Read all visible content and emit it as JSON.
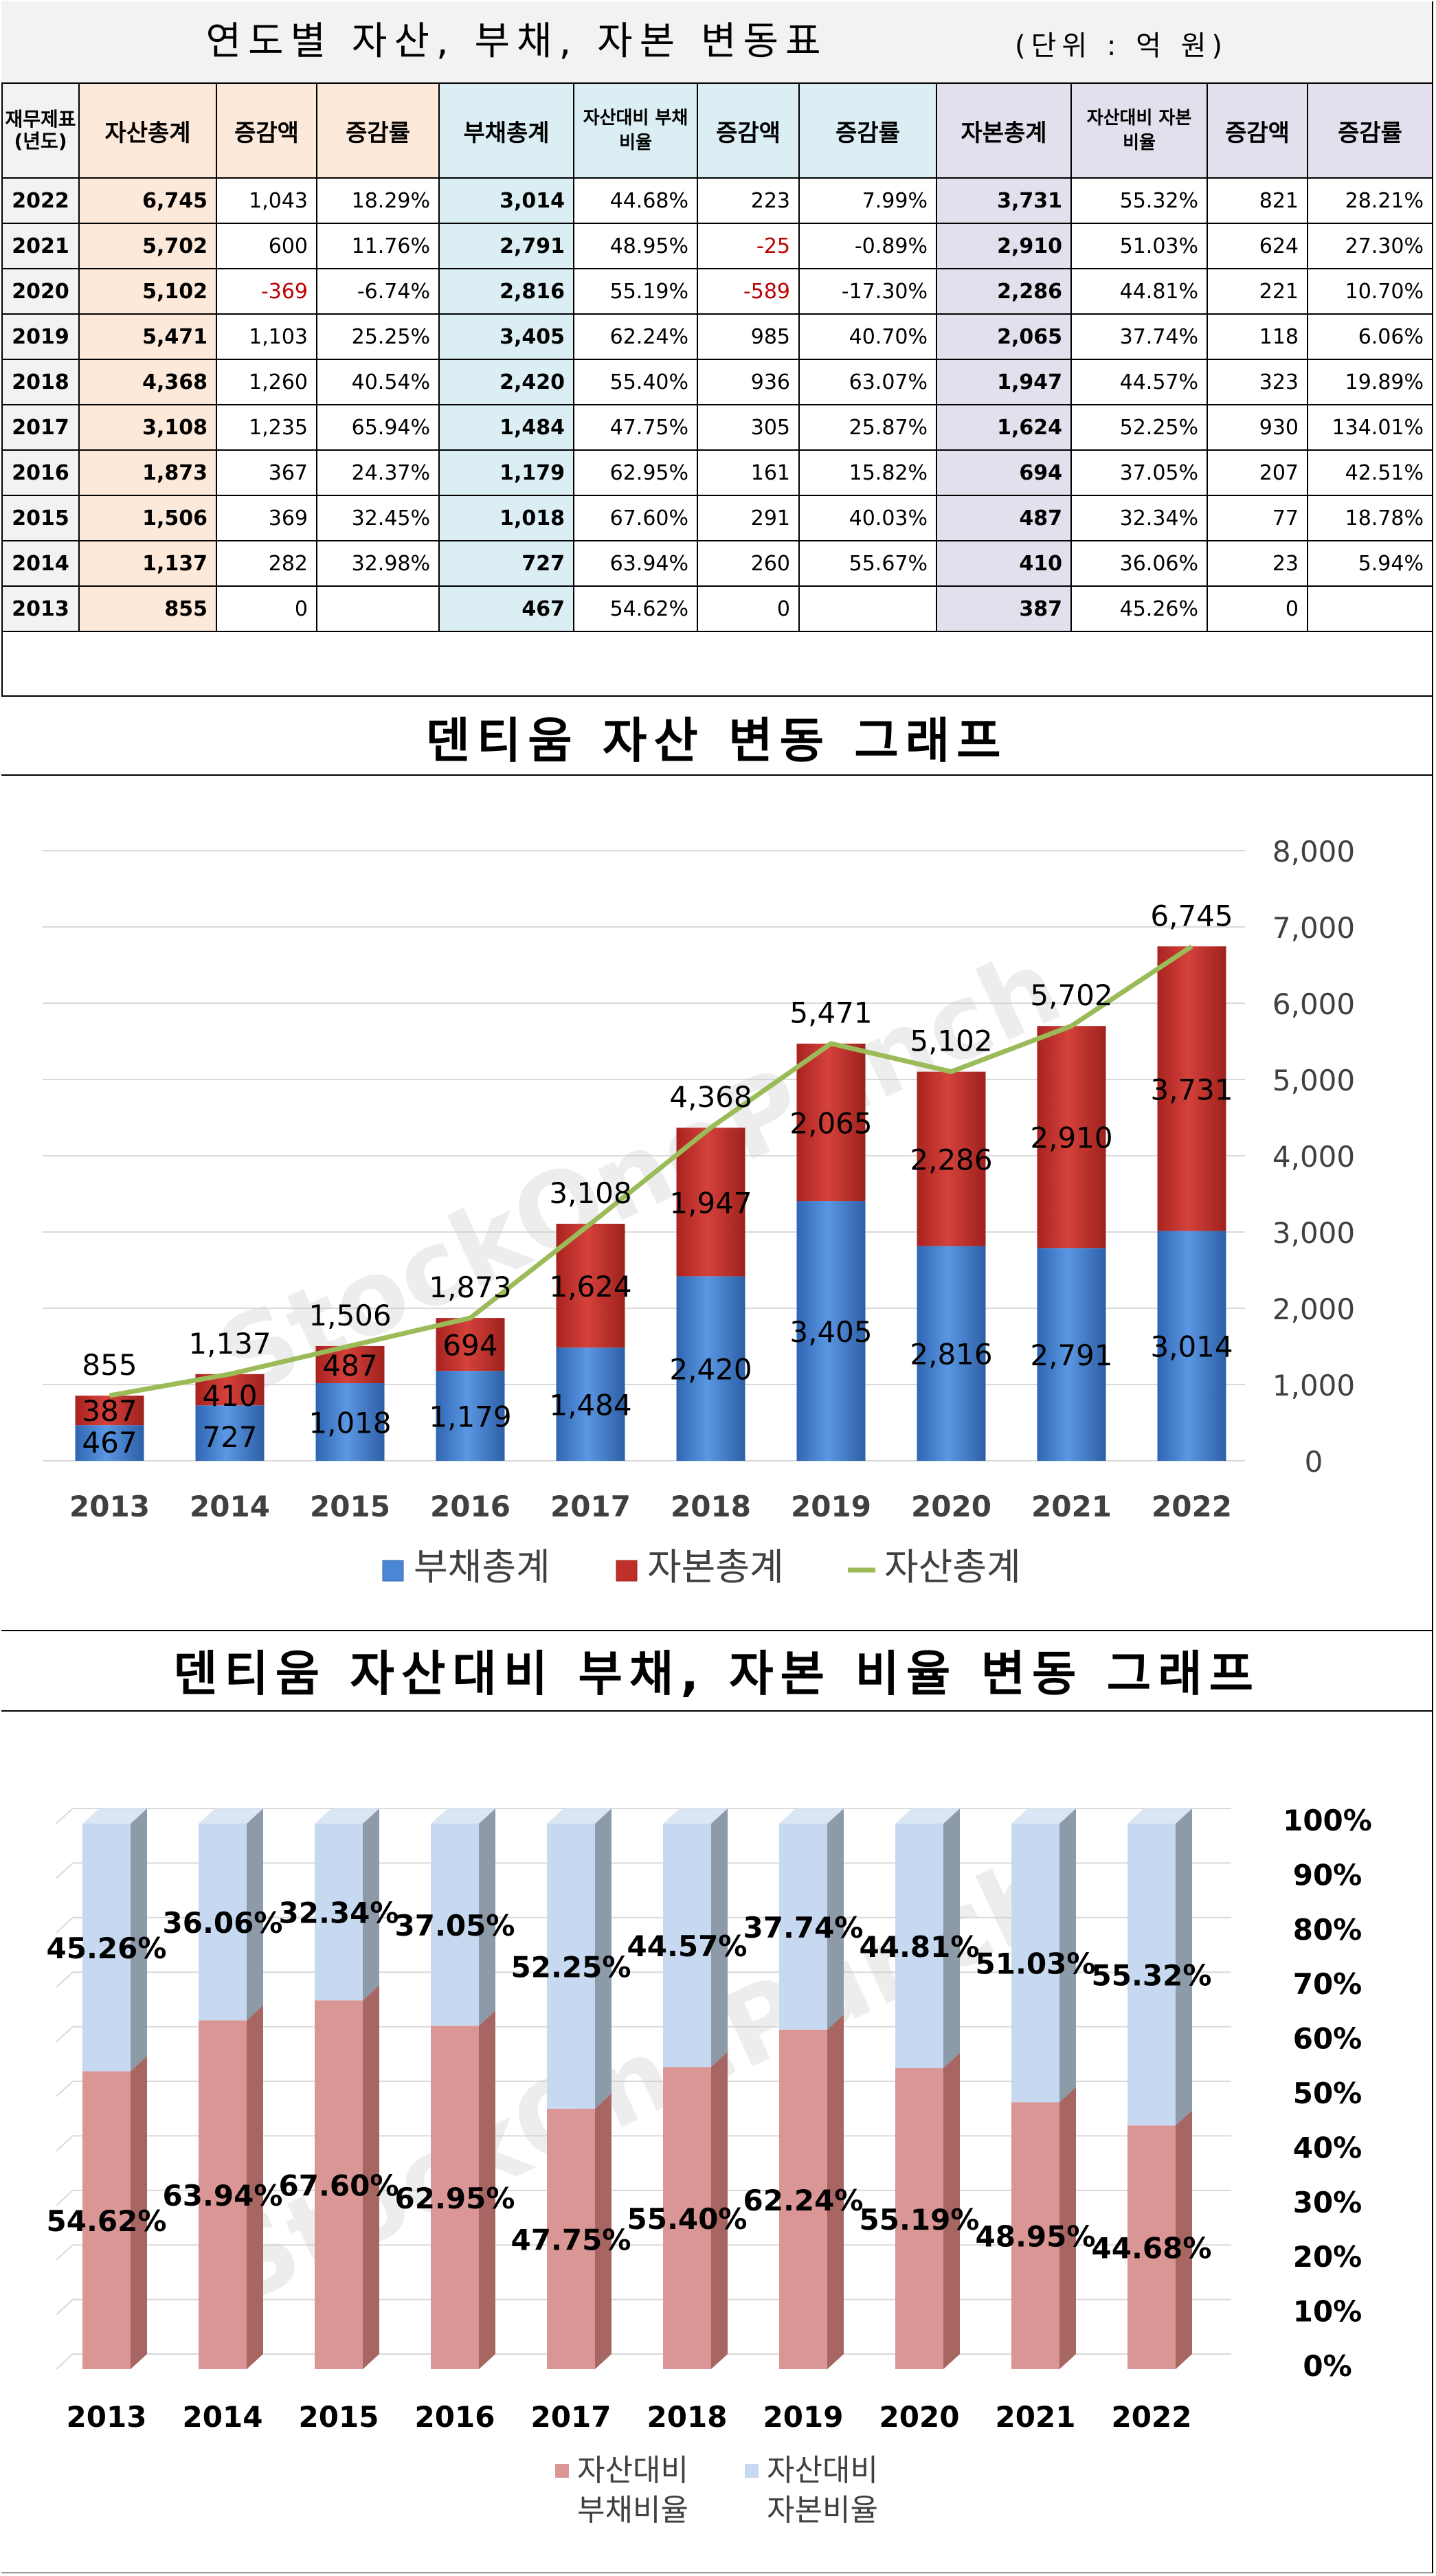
{
  "table": {
    "title": "연도별 자산, 부채, 자본 변동표",
    "unit": "(단위 : 억 원)",
    "headers": {
      "year": "재무제표(년도)",
      "asset_total": "자산총계",
      "asset_change": "증감액",
      "asset_rate": "증감률",
      "liab_total": "부채총계",
      "liab_ratio": "자산대비 부채비율",
      "liab_change": "증감액",
      "liab_rate": "증감률",
      "cap_total": "자본총계",
      "cap_ratio": "자산대비 자본비율",
      "cap_change": "증감액",
      "cap_rate": "증감률"
    },
    "rows": [
      {
        "year": "2022",
        "asset": "6,745",
        "asset_chg": "1,043",
        "asset_rate": "18.29%",
        "liab": "3,014",
        "liab_ratio": "44.68%",
        "liab_chg": "223",
        "liab_rate": "7.99%",
        "cap": "3,731",
        "cap_ratio": "55.32%",
        "cap_chg": "821",
        "cap_rate": "28.21%"
      },
      {
        "year": "2021",
        "asset": "5,702",
        "asset_chg": "600",
        "asset_rate": "11.76%",
        "liab": "2,791",
        "liab_ratio": "48.95%",
        "liab_chg": "-25",
        "liab_rate": "-0.89%",
        "cap": "2,910",
        "cap_ratio": "51.03%",
        "cap_chg": "624",
        "cap_rate": "27.30%"
      },
      {
        "year": "2020",
        "asset": "5,102",
        "asset_chg": "-369",
        "asset_rate": "-6.74%",
        "liab": "2,816",
        "liab_ratio": "55.19%",
        "liab_chg": "-589",
        "liab_rate": "-17.30%",
        "cap": "2,286",
        "cap_ratio": "44.81%",
        "cap_chg": "221",
        "cap_rate": "10.70%"
      },
      {
        "year": "2019",
        "asset": "5,471",
        "asset_chg": "1,103",
        "asset_rate": "25.25%",
        "liab": "3,405",
        "liab_ratio": "62.24%",
        "liab_chg": "985",
        "liab_rate": "40.70%",
        "cap": "2,065",
        "cap_ratio": "37.74%",
        "cap_chg": "118",
        "cap_rate": "6.06%"
      },
      {
        "year": "2018",
        "asset": "4,368",
        "asset_chg": "1,260",
        "asset_rate": "40.54%",
        "liab": "2,420",
        "liab_ratio": "55.40%",
        "liab_chg": "936",
        "liab_rate": "63.07%",
        "cap": "1,947",
        "cap_ratio": "44.57%",
        "cap_chg": "323",
        "cap_rate": "19.89%"
      },
      {
        "year": "2017",
        "asset": "3,108",
        "asset_chg": "1,235",
        "asset_rate": "65.94%",
        "liab": "1,484",
        "liab_ratio": "47.75%",
        "liab_chg": "305",
        "liab_rate": "25.87%",
        "cap": "1,624",
        "cap_ratio": "52.25%",
        "cap_chg": "930",
        "cap_rate": "134.01%"
      },
      {
        "year": "2016",
        "asset": "1,873",
        "asset_chg": "367",
        "asset_rate": "24.37%",
        "liab": "1,179",
        "liab_ratio": "62.95%",
        "liab_chg": "161",
        "liab_rate": "15.82%",
        "cap": "694",
        "cap_ratio": "37.05%",
        "cap_chg": "207",
        "cap_rate": "42.51%"
      },
      {
        "year": "2015",
        "asset": "1,506",
        "asset_chg": "369",
        "asset_rate": "32.45%",
        "liab": "1,018",
        "liab_ratio": "67.60%",
        "liab_chg": "291",
        "liab_rate": "40.03%",
        "cap": "487",
        "cap_ratio": "32.34%",
        "cap_chg": "77",
        "cap_rate": "18.78%"
      },
      {
        "year": "2014",
        "asset": "1,137",
        "asset_chg": "282",
        "asset_rate": "32.98%",
        "liab": "727",
        "liab_ratio": "63.94%",
        "liab_chg": "260",
        "liab_rate": "55.67%",
        "cap": "410",
        "cap_ratio": "36.06%",
        "cap_chg": "23",
        "cap_rate": "5.94%"
      },
      {
        "year": "2013",
        "asset": "855",
        "asset_chg": "0",
        "asset_rate": "",
        "liab": "467",
        "liab_ratio": "54.62%",
        "liab_chg": "0",
        "liab_rate": "",
        "cap": "387",
        "cap_ratio": "45.26%",
        "cap_chg": "0",
        "cap_rate": ""
      }
    ]
  },
  "watermark": "StockOnePunch",
  "colors": {
    "liab_bar": "#4a86d4",
    "cap_bar": "#c0302a",
    "asset_line": "#9bbb59",
    "ratio_liab": "#d99694",
    "ratio_cap": "#c6d9f1",
    "negative": "#c00000"
  },
  "chart_data": [
    {
      "type": "bar",
      "stacked": true,
      "title": "덴티움 자산 변동 그래프",
      "categories": [
        "2013",
        "2014",
        "2015",
        "2016",
        "2017",
        "2018",
        "2019",
        "2020",
        "2021",
        "2022"
      ],
      "series": [
        {
          "name": "부채총계",
          "kind": "bar",
          "values": [
            467,
            727,
            1018,
            1179,
            1484,
            2420,
            3405,
            2816,
            2791,
            3014
          ],
          "labels": [
            "467",
            "727",
            "1,018",
            "1,179",
            "1,484",
            "2,420",
            "3,405",
            "2,816",
            "2,791",
            "3,014"
          ]
        },
        {
          "name": "자본총계",
          "kind": "bar",
          "values": [
            387,
            410,
            487,
            694,
            1624,
            1947,
            2065,
            2286,
            2910,
            3731
          ],
          "labels": [
            "387",
            "410",
            "487",
            "694",
            "1,624",
            "1,947",
            "2,065",
            "2,286",
            "2,910",
            "3,731"
          ]
        },
        {
          "name": "자산총계",
          "kind": "line",
          "values": [
            855,
            1137,
            1506,
            1873,
            3108,
            4368,
            5471,
            5102,
            5702,
            6745
          ],
          "labels": [
            "855",
            "1,137",
            "1,506",
            "1,873",
            "3,108",
            "4,368",
            "5,471",
            "5,102",
            "5,702",
            "6,745"
          ]
        }
      ],
      "yaxis": {
        "min": 0,
        "max": 8000,
        "ticks": [
          "0",
          "1,000",
          "2,000",
          "3,000",
          "4,000",
          "5,000",
          "6,000",
          "7,000",
          "8,000"
        ],
        "position": "right"
      },
      "grid": true,
      "legend": "bottom"
    },
    {
      "type": "bar",
      "stacked": true,
      "percent": true,
      "title": "덴티움 자산대비 부채, 자본 비율 변동 그래프",
      "categories": [
        "2013",
        "2014",
        "2015",
        "2016",
        "2017",
        "2018",
        "2019",
        "2020",
        "2021",
        "2022"
      ],
      "series": [
        {
          "name": "자산대비 부채비율",
          "values": [
            54.62,
            63.94,
            67.6,
            62.95,
            47.75,
            55.4,
            62.24,
            55.19,
            48.95,
            44.68
          ],
          "labels": [
            "54.62%",
            "63.94%",
            "67.60%",
            "62.95%",
            "47.75%",
            "55.40%",
            "62.24%",
            "55.19%",
            "48.95%",
            "44.68%"
          ]
        },
        {
          "name": "자산대비 자본비율",
          "values": [
            45.26,
            36.06,
            32.34,
            37.05,
            52.25,
            44.57,
            37.74,
            44.81,
            51.03,
            55.32
          ],
          "labels": [
            "45.26%",
            "36.06%",
            "32.34%",
            "37.05%",
            "52.25%",
            "44.57%",
            "37.74%",
            "44.81%",
            "51.03%",
            "55.32%"
          ]
        }
      ],
      "yaxis": {
        "min": 0,
        "max": 100,
        "ticks": [
          "0%",
          "10%",
          "20%",
          "30%",
          "40%",
          "50%",
          "60%",
          "70%",
          "80%",
          "90%",
          "100%"
        ],
        "position": "right"
      },
      "grid": true,
      "legend": "bottom"
    }
  ]
}
